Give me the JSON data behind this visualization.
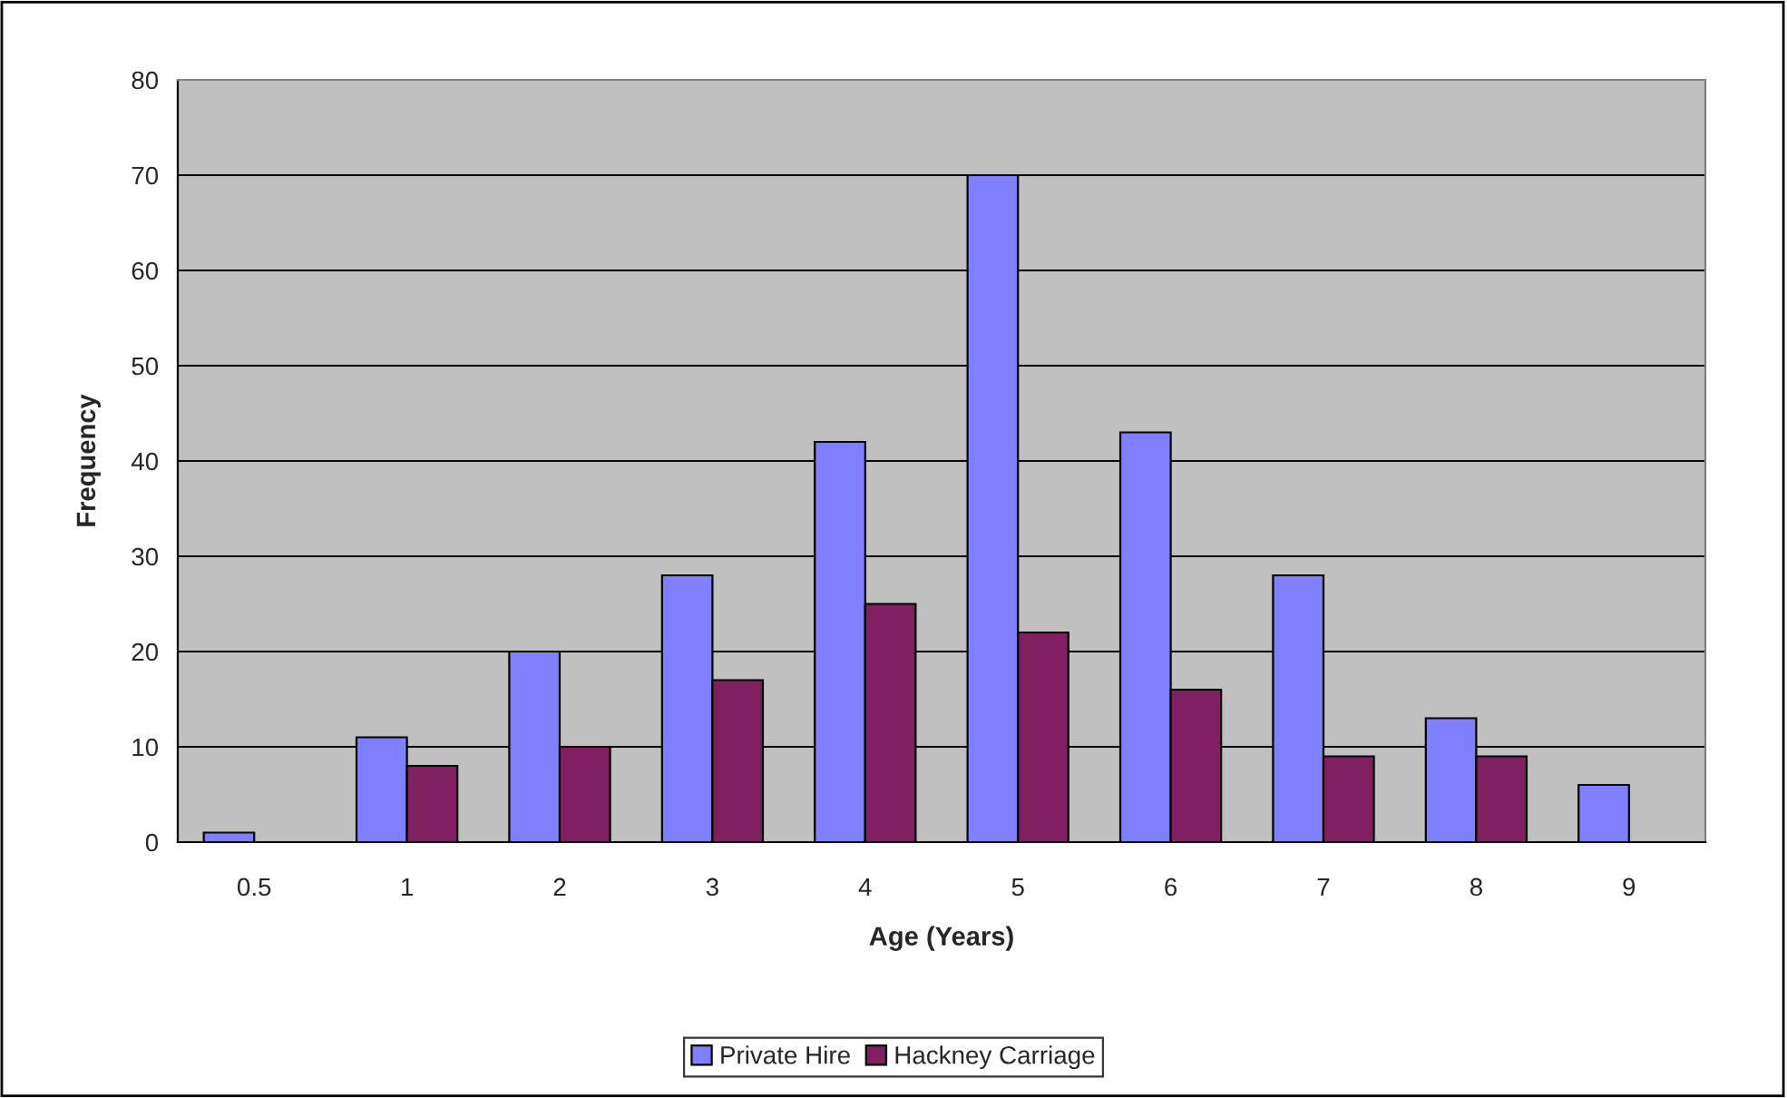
{
  "chart_data": {
    "type": "bar",
    "xlabel": "Age (Years)",
    "ylabel": "Frequency",
    "categories": [
      "0.5",
      "1",
      "2",
      "3",
      "4",
      "5",
      "6",
      "7",
      "8",
      "9"
    ],
    "series": [
      {
        "name": "Private Hire",
        "color": "#8080ff",
        "values": [
          1,
          11,
          20,
          28,
          42,
          70,
          43,
          28,
          13,
          6
        ]
      },
      {
        "name": "Hackney Carriage",
        "color": "#802060",
        "values": [
          null,
          8,
          10,
          17,
          25,
          22,
          16,
          9,
          9,
          null
        ]
      }
    ],
    "ylim": [
      0,
      80
    ],
    "yticks": [
      0,
      10,
      20,
      30,
      40,
      50,
      60,
      70,
      80
    ],
    "grid": "y",
    "legend": "bottom"
  }
}
